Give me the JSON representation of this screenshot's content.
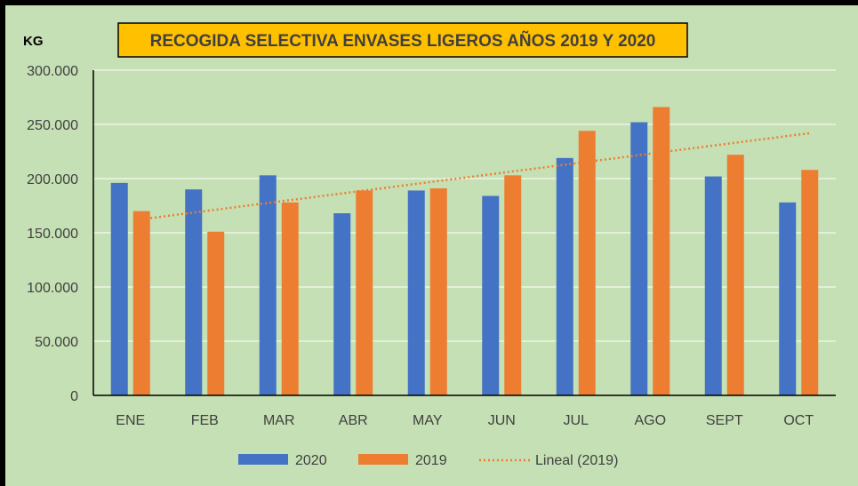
{
  "chart_data": {
    "type": "bar",
    "title": "RECOGIDA SELECTIVA ENVASES LIGEROS AÑOS 2019 Y 2020",
    "ylabel": "KG",
    "xlabel": "",
    "ylim": [
      0,
      300000
    ],
    "yticks": [
      0,
      50000,
      100000,
      150000,
      200000,
      250000,
      300000
    ],
    "ytick_labels": [
      "0",
      "50.000",
      "100.000",
      "150.000",
      "200.000",
      "250.000",
      "300.000"
    ],
    "categories": [
      "ENE",
      "FEB",
      "MAR",
      "ABR",
      "MAY",
      "JUN",
      "JUL",
      "AGO",
      "SEPT",
      "OCT"
    ],
    "series": [
      {
        "name": "2020",
        "color": "#4472C4",
        "values": [
          196000,
          190000,
          203000,
          168000,
          189000,
          184000,
          219000,
          252000,
          202000,
          178000
        ]
      },
      {
        "name": "2019",
        "color": "#ED7D31",
        "values": [
          170000,
          151000,
          178000,
          189000,
          191000,
          203000,
          244000,
          266000,
          222000,
          208000
        ]
      }
    ],
    "trendline": {
      "name": "Lineal (2019)",
      "series": "2019",
      "type": "linear",
      "color": "#ED7D31",
      "dashed": true
    },
    "grid": true,
    "legend": "bottom",
    "background": "#C5E0B4",
    "title_box_color": "#FFC000"
  }
}
